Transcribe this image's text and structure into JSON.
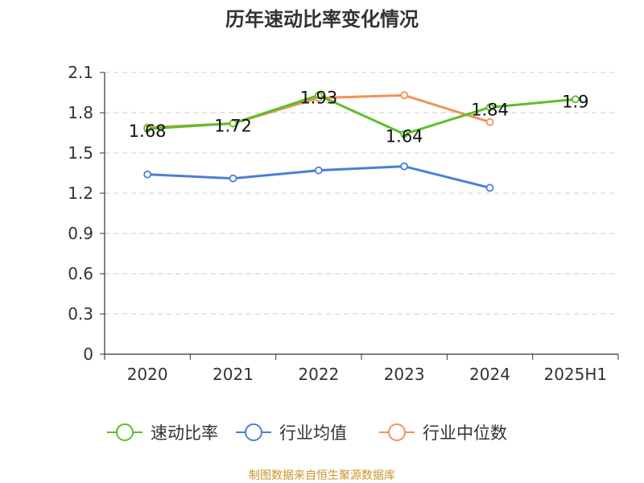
{
  "chart_data": {
    "type": "line",
    "title": "历年速动比率变化情况",
    "categories": [
      "2020",
      "2021",
      "2022",
      "2023",
      "2024",
      "2025H1"
    ],
    "ylim": [
      0,
      2.1
    ],
    "yticks": [
      "0",
      "0.3",
      "0.6",
      "0.9",
      "1.2",
      "1.5",
      "1.8",
      "2.1"
    ],
    "grid": true,
    "legend_position": "bottom",
    "series": [
      {
        "name": "速动比率",
        "color": "#5cbf2a",
        "values": [
          1.68,
          1.72,
          1.93,
          1.64,
          1.84,
          1.9
        ],
        "labels": [
          "1.68",
          "1.72",
          "1.93",
          "1.64",
          "1.84",
          "1.9"
        ]
      },
      {
        "name": "行业均值",
        "color": "#4a7fd6",
        "values": [
          1.34,
          1.31,
          1.37,
          1.4,
          1.24,
          null
        ]
      },
      {
        "name": "行业中位数",
        "color": "#f39158",
        "values": [
          1.69,
          1.72,
          1.91,
          1.93,
          1.73,
          null
        ]
      }
    ]
  },
  "footer": {
    "source": "制图数据来自恒生聚源数据库"
  }
}
